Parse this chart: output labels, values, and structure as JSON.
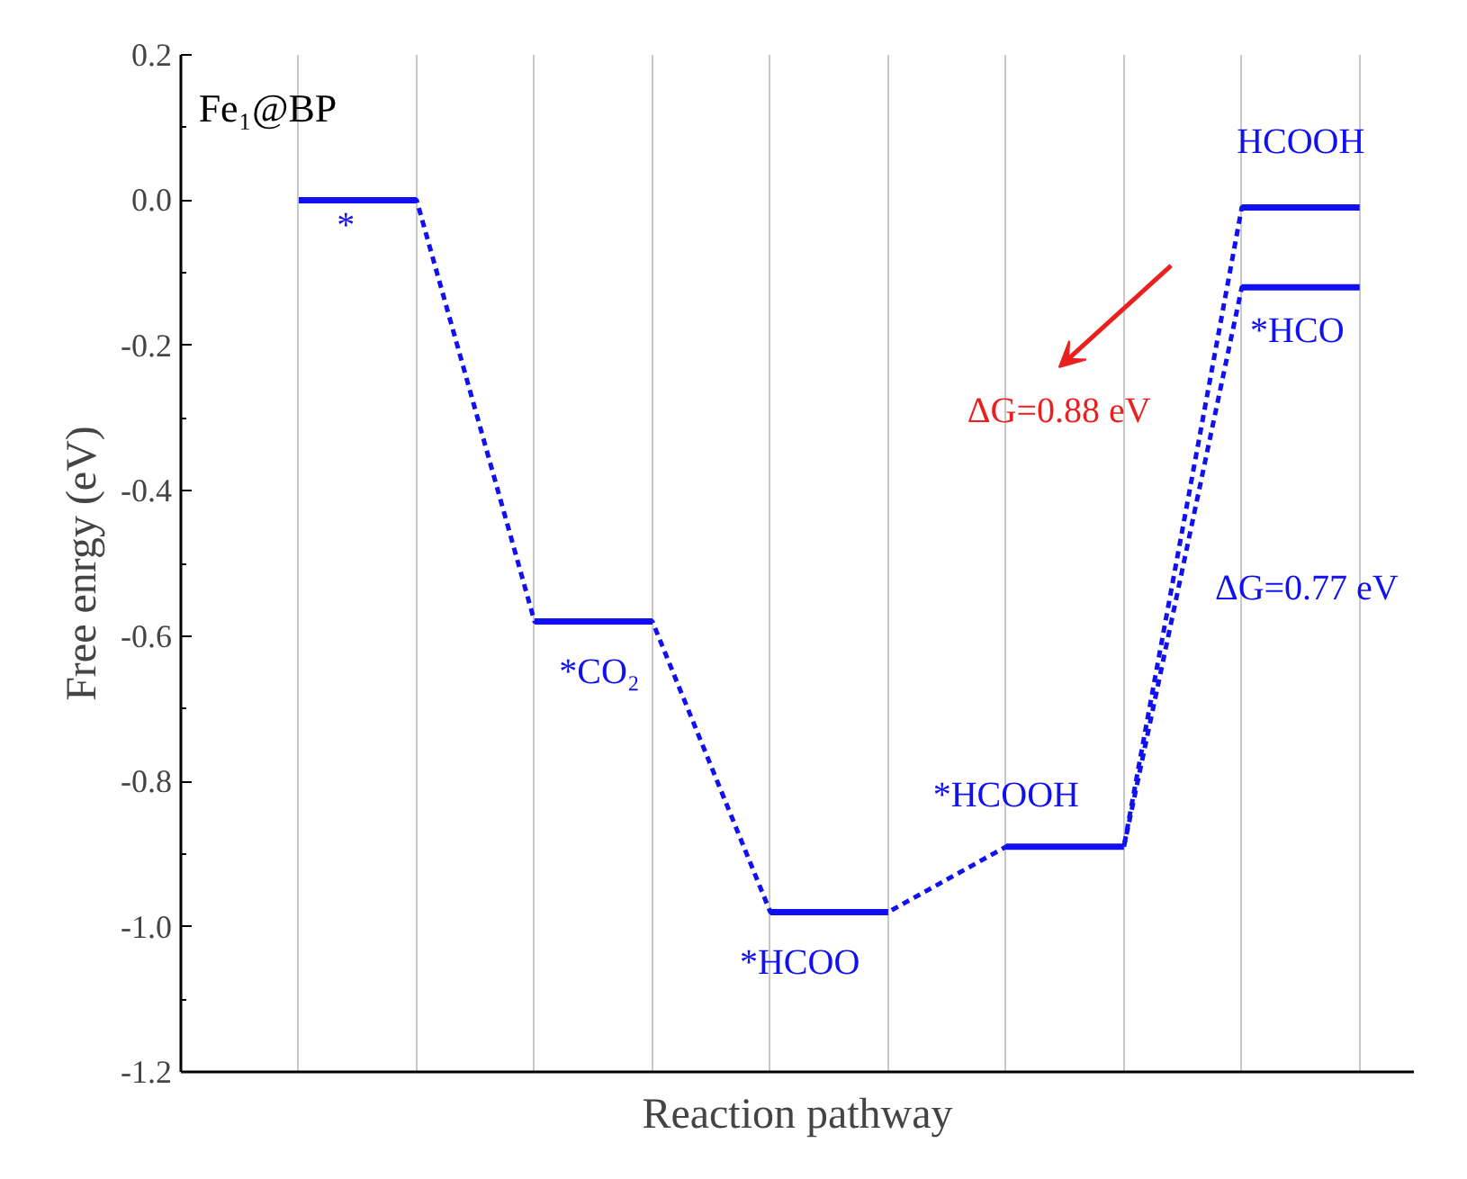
{
  "chart_data": {
    "type": "line",
    "xlabel": "Reaction pathway",
    "ylabel": "Free enrgy (eV)",
    "categories": [
      null,
      null,
      null,
      null,
      null,
      null,
      null,
      null,
      null,
      null
    ],
    "series": [
      {
        "line_style": "dashed",
        "color": "#1010f0",
        "values": [
          0,
          0,
          -0.58,
          -0.58,
          -0.98,
          -0.98,
          -0.89,
          -0.89,
          -0.01,
          -0.01
        ]
      },
      {
        "line_style": "dashed",
        "color": "#1010f0",
        "values": [
          null,
          null,
          null,
          null,
          null,
          null,
          null,
          -0.89,
          -0.12,
          -0.12
        ]
      }
    ],
    "ylim": [
      -1.2,
      0.2
    ],
    "yticks": [
      {
        "value": -1.2,
        "label": "-1.2"
      },
      {
        "value": -1.0,
        "label": "-1.0"
      },
      {
        "value": -0.8,
        "label": "-0.8"
      },
      {
        "value": -0.6,
        "label": "-0.6"
      },
      {
        "value": -0.4,
        "label": "-0.4"
      },
      {
        "value": -0.2,
        "label": "-0.2"
      },
      {
        "value": 0,
        "label": "0.0"
      },
      {
        "value": 0.2,
        "label": "0.2"
      }
    ],
    "grid": "x",
    "tick_labels": "y",
    "annotations": [
      "Fe₁@BP",
      "*",
      "*CO₂",
      "*HCOO",
      "*HCOOH",
      "HCOOH",
      "*HCO",
      "ΔG=0.88 eV",
      "ΔG=0.77 eV"
    ]
  }
}
